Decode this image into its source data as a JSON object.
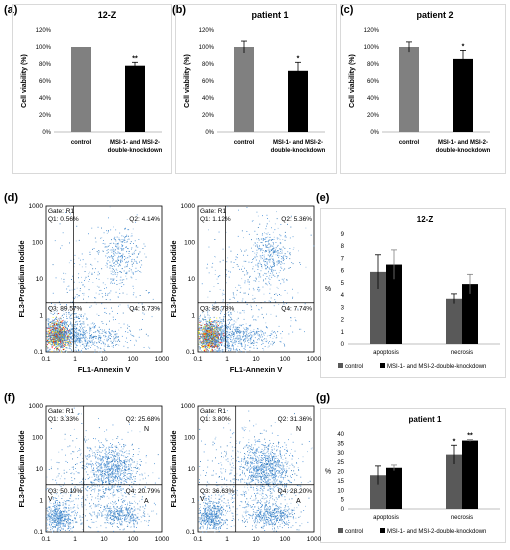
{
  "panels": {
    "a": "(a)",
    "b": "(b)",
    "c": "(c)",
    "d": "(d)",
    "e": "(e)",
    "f": "(f)",
    "g": "(g)"
  },
  "chart_data": [
    {
      "id": "a",
      "type": "bar",
      "title": "12-Z",
      "ylabel": "Cell viability (%)",
      "yticks": [
        "0%",
        "20%",
        "40%",
        "60%",
        "80%",
        "100%",
        "120%"
      ],
      "ylim": [
        0,
        120
      ],
      "categories": [
        "control",
        "MSI-1- and MSI-2-double-knockdown"
      ],
      "values": [
        100,
        78
      ],
      "errors": [
        0,
        4
      ],
      "significance": [
        "",
        "**"
      ],
      "colors": [
        "#808080",
        "#000000"
      ]
    },
    {
      "id": "b",
      "type": "bar",
      "title": "patient 1",
      "ylabel": "Cell viability (%)",
      "yticks": [
        "0%",
        "20%",
        "40%",
        "60%",
        "80%",
        "100%",
        "120%"
      ],
      "ylim": [
        0,
        120
      ],
      "categories": [
        "control",
        "MSI-1- and MSI-2-double-knockdown"
      ],
      "values": [
        100,
        72
      ],
      "errors": [
        7,
        10
      ],
      "significance": [
        "",
        "*"
      ],
      "colors": [
        "#808080",
        "#000000"
      ]
    },
    {
      "id": "c",
      "type": "bar",
      "title": "patient 2",
      "ylabel": "Cell viability (%)",
      "yticks": [
        "0%",
        "20%",
        "40%",
        "60%",
        "80%",
        "100%",
        "120%"
      ],
      "ylim": [
        0,
        120
      ],
      "categories": [
        "control",
        "MSI-1- and MSI-2-double-knockdown"
      ],
      "values": [
        100,
        86
      ],
      "errors": [
        6,
        10
      ],
      "significance": [
        "",
        "*"
      ],
      "colors": [
        "#808080",
        "#000000"
      ]
    },
    {
      "id": "d1",
      "type": "scatter",
      "xlabel": "FL1-Annexin V",
      "ylabel": "FL3-Propidium Iodide",
      "xticks": [
        "0.1",
        "1",
        "10",
        "100",
        "1000"
      ],
      "yticks": [
        "0.1",
        "1",
        "10",
        "100",
        "1000"
      ],
      "gate": "Gate: R1",
      "quadrants": {
        "q1": "Q1: 0.56%",
        "q2": "Q2: 4.14%",
        "q3": "Q3: 89.57%",
        "q4": "Q4: 5.73%"
      }
    },
    {
      "id": "d2",
      "type": "scatter",
      "xlabel": "FL1-Annexin V",
      "ylabel": "FL3-Propidium Iodide",
      "xticks": [
        "0.1",
        "1",
        "10",
        "100",
        "1000"
      ],
      "yticks": [
        "0.1",
        "1",
        "10",
        "100",
        "1000"
      ],
      "gate": "Gate: R1",
      "quadrants": {
        "q1": "Q1: 1.12%",
        "q2": "Q2: 5.36%",
        "q3": "Q3: 85.78%",
        "q4": "Q4: 7.74%"
      }
    },
    {
      "id": "e",
      "type": "bar",
      "title": "12-Z",
      "ylabel": "%",
      "yticks": [
        "0",
        "1",
        "2",
        "3",
        "4",
        "5",
        "6",
        "7",
        "8",
        "9"
      ],
      "ylim": [
        0,
        9
      ],
      "categories": [
        "apoptosis",
        "necrosis"
      ],
      "series": [
        {
          "name": "control",
          "values": [
            5.9,
            3.7
          ],
          "errors": [
            1.4,
            0.4
          ],
          "color": "#595959"
        },
        {
          "name": "MSI-1- and MSI-2-double-knockdown",
          "values": [
            6.5,
            4.9
          ],
          "errors": [
            1.2,
            0.8
          ],
          "color": "#000000"
        }
      ],
      "significance": [
        [
          "",
          ""
        ],
        [
          "",
          ""
        ]
      ],
      "legend": "bottom"
    },
    {
      "id": "f1",
      "type": "scatter",
      "xlabel": "",
      "ylabel": "FL3-Propidium Iodide",
      "xticks": [
        "0.1",
        "1",
        "10",
        "100",
        "1000"
      ],
      "yticks": [
        "0.1",
        "1",
        "10",
        "100",
        "1000"
      ],
      "gate": "Gate: R1",
      "quadrants": {
        "q1": "Q1: 3.33%",
        "q2": "Q2: 25.68%",
        "q3": "Q3: 50.19%",
        "q4": "Q4: 20.79%"
      },
      "region_labels": {
        "v": "V",
        "a": "A",
        "n": "N"
      }
    },
    {
      "id": "f2",
      "type": "scatter",
      "xlabel": "",
      "ylabel": "FL3-Propidium Iodide",
      "xticks": [
        "0.1",
        "1",
        "10",
        "100",
        "1000"
      ],
      "yticks": [
        "0.1",
        "1",
        "10",
        "100",
        "1000"
      ],
      "gate": "Gate: R1",
      "quadrants": {
        "q1": "Q1: 3.80%",
        "q2": "Q2: 31.36%",
        "q3": "Q3: 36.63%",
        "q4": "Q4: 28.20%"
      },
      "region_labels": {
        "v": "V",
        "a": "A",
        "n": "N"
      }
    },
    {
      "id": "g",
      "type": "bar",
      "title": "patient 1",
      "ylabel": "%",
      "yticks": [
        "0",
        "5",
        "10",
        "15",
        "20",
        "25",
        "30",
        "35",
        "40"
      ],
      "ylim": [
        0,
        40
      ],
      "categories": [
        "apoptosis",
        "necrosis"
      ],
      "series": [
        {
          "name": "control",
          "values": [
            18,
            29
          ],
          "errors": [
            5,
            5
          ],
          "color": "#595959"
        },
        {
          "name": "MSI-1- and MSI-2-double-knockdown",
          "values": [
            22,
            36.5
          ],
          "errors": [
            1.5,
            0.5
          ],
          "color": "#000000"
        }
      ],
      "significance": [
        [
          "",
          "*"
        ],
        [
          "",
          "**"
        ]
      ],
      "legend": "bottom"
    }
  ]
}
